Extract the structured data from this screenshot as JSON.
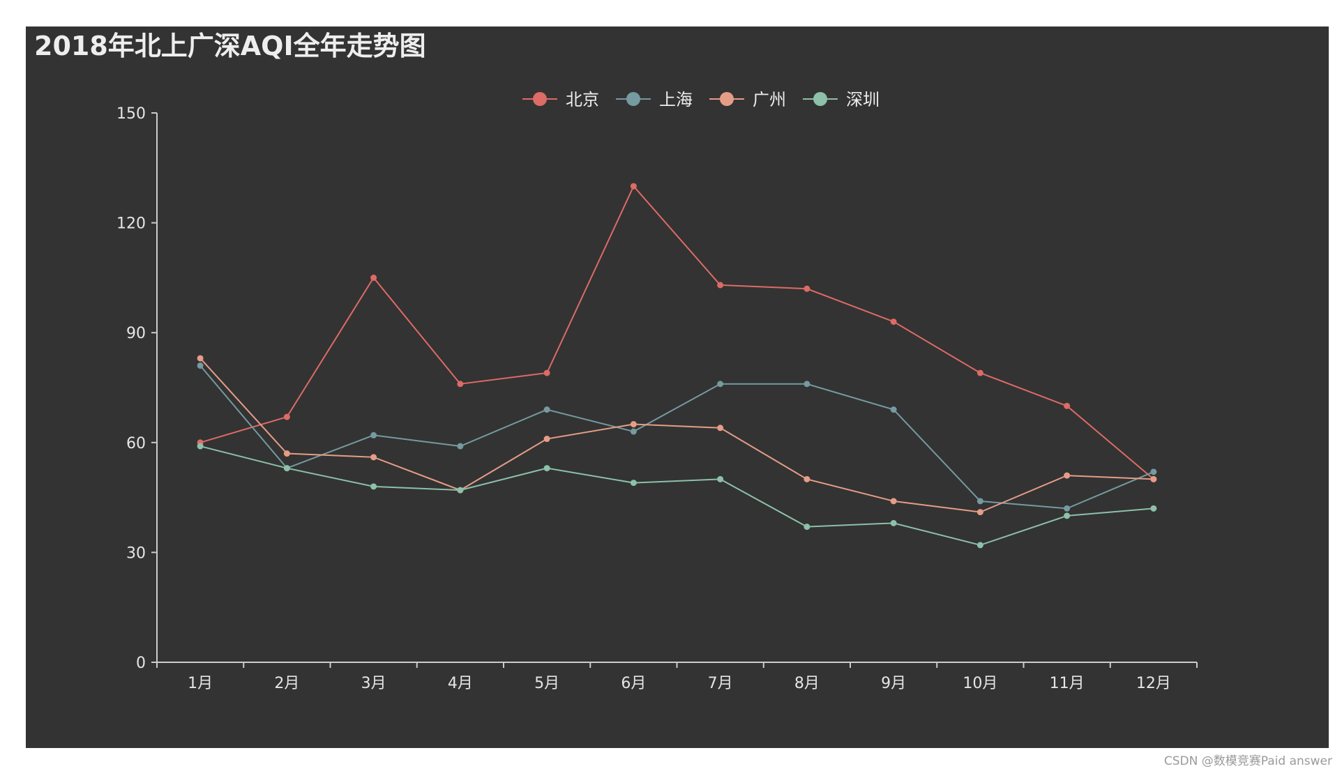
{
  "chart_data": {
    "type": "line",
    "title": "2018年北上广深AQI全年走势图",
    "categories": [
      "1月",
      "2月",
      "3月",
      "4月",
      "5月",
      "6月",
      "7月",
      "8月",
      "9月",
      "10月",
      "11月",
      "12月"
    ],
    "series": [
      {
        "name": "北京",
        "color": "#dd6b66",
        "values": [
          60,
          67,
          105,
          76,
          79,
          130,
          103,
          102,
          93,
          79,
          70,
          50
        ]
      },
      {
        "name": "上海",
        "color": "#759aa0",
        "values": [
          81,
          53,
          62,
          59,
          69,
          63,
          76,
          76,
          69,
          44,
          42,
          52
        ]
      },
      {
        "name": "广州",
        "color": "#e69d87",
        "values": [
          83,
          57,
          56,
          47,
          61,
          65,
          64,
          50,
          44,
          41,
          51,
          50
        ]
      },
      {
        "name": "深圳",
        "color": "#8dc1a9",
        "values": [
          59,
          53,
          48,
          47,
          53,
          49,
          50,
          37,
          38,
          32,
          40,
          42
        ]
      }
    ],
    "ylim": [
      0,
      150
    ],
    "yticks": [
      0,
      30,
      60,
      90,
      120,
      150
    ],
    "xlabel": "",
    "ylabel": "",
    "grid": false,
    "legend": "top-center"
  },
  "watermark": "CSDN @数模竞赛Paid answer"
}
